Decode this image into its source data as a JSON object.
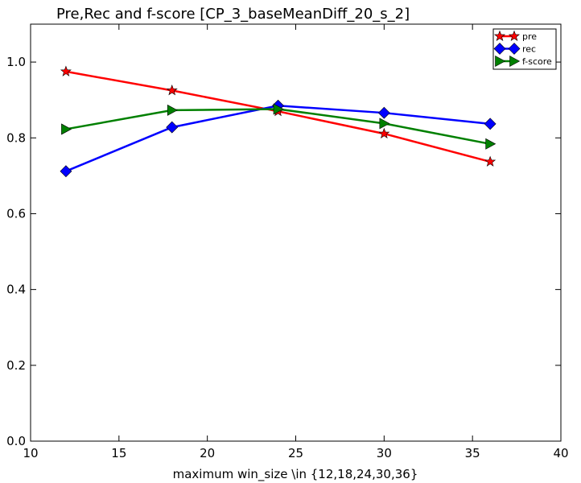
{
  "chart_data": {
    "type": "line",
    "title": "Pre,Rec and f-score [CP_3_baseMeanDiff_20_s_2]",
    "xlabel": "maximum win_size \\in {12,18,24,30,36}",
    "ylabel": "",
    "xlim": [
      10,
      40
    ],
    "ylim": [
      0.0,
      1.1
    ],
    "x_ticks": [
      10,
      15,
      20,
      25,
      30,
      35,
      40
    ],
    "y_ticks": [
      0.0,
      0.2,
      0.4,
      0.6,
      0.8,
      1.0
    ],
    "x_tick_labels": [
      "10",
      "15",
      "20",
      "25",
      "30",
      "35",
      "40"
    ],
    "y_tick_labels": [
      "0.0",
      "0.2",
      "0.4",
      "0.6",
      "0.8",
      "1.0"
    ],
    "grid": false,
    "legend_position": "top-right",
    "x": [
      12,
      18,
      24,
      30,
      36
    ],
    "series": [
      {
        "name": "pre",
        "color": "#ff0000",
        "marker": "star",
        "values": [
          0.975,
          0.925,
          0.87,
          0.811,
          0.737
        ]
      },
      {
        "name": "rec",
        "color": "#0000ff",
        "marker": "diamond",
        "values": [
          0.712,
          0.828,
          0.885,
          0.866,
          0.837
        ]
      },
      {
        "name": "f-score",
        "color": "#008000",
        "marker": "triangle-right",
        "values": [
          0.823,
          0.873,
          0.876,
          0.838,
          0.784
        ]
      }
    ]
  }
}
